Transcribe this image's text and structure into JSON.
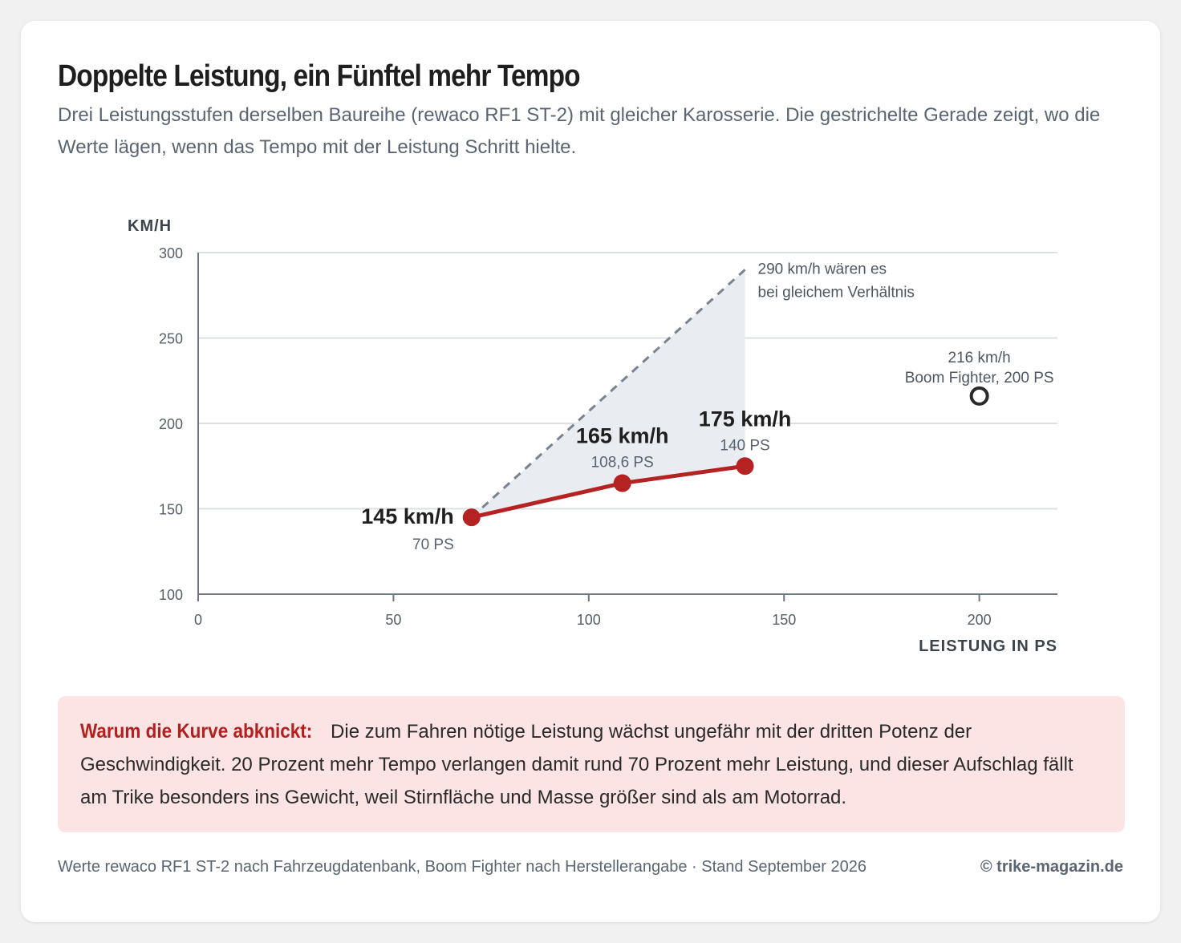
{
  "header": {
    "title": "Doppelte Leistung, ein Fünftel mehr Tempo",
    "subtitle": "Drei Leistungsstufen derselben Baureihe (rewaco RF1 ST-2) mit gleicher Karosserie. Die gestrichelte Gerade zeigt, wo die Werte lägen, wenn das Tempo mit der Leistung Schritt hielte."
  },
  "chart_data": {
    "type": "line",
    "xlabel": "LEISTUNG IN PS",
    "ylabel": "KM/H",
    "xlim": [
      0,
      220
    ],
    "ylim": [
      100,
      300
    ],
    "xticks": [
      0,
      50,
      100,
      150,
      200
    ],
    "yticks": [
      100,
      150,
      200,
      250,
      300
    ],
    "grid": "horizontal",
    "colors": {
      "series": "#b52222",
      "reference": "#7a8290",
      "area": "#e8ebef",
      "comparison": "#2a2a2a"
    },
    "series": [
      {
        "points": [
          {
            "x": 70,
            "y": 145,
            "value_label": "145 km/h",
            "sub_label": "70 PS"
          },
          {
            "x": 108.6,
            "y": 165,
            "value_label": "165 km/h",
            "sub_label": "108,6 PS"
          },
          {
            "x": 140,
            "y": 175,
            "value_label": "175 km/h",
            "sub_label": "140 PS"
          }
        ]
      }
    ],
    "reference_line": {
      "from": {
        "x": 70,
        "y": 145
      },
      "to": {
        "x": 140,
        "y": 290
      },
      "annotation": [
        "290 km/h wären es",
        "bei gleichem Verhältnis"
      ]
    },
    "comparison_point": {
      "x": 200,
      "y": 216,
      "label_lines": [
        "216 km/h",
        "Boom Fighter, 200 PS"
      ]
    }
  },
  "note": {
    "label": "Warum die Kurve abknickt:",
    "text": "Die zum Fahren nötige Leistung wächst ungefähr mit der dritten Potenz der Geschwindigkeit. 20 Prozent mehr Tempo verlangen damit rund 70 Prozent mehr Leistung, und dieser Aufschlag fällt am Trike besonders ins Gewicht, weil Stirnfläche und Masse größer sind als am Motorrad."
  },
  "footer": {
    "source": "Werte rewaco RF1 ST-2 nach Fahrzeugdatenbank, Boom Fighter nach Herstellerangabe · Stand September 2026",
    "credit": "© trike-magazin.de"
  }
}
